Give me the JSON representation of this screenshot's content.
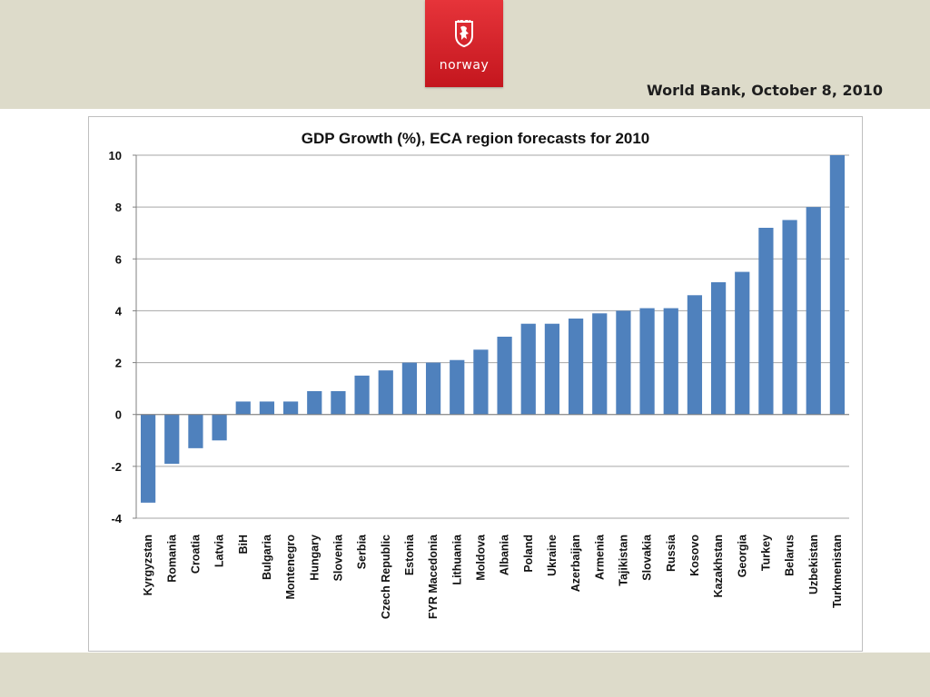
{
  "header": {
    "logo_text": "norway",
    "subtitle": "World Bank, October 8, 2010"
  },
  "colors": {
    "bar": "#4f81bd",
    "logo_red": "#d9252c",
    "band": "#dddbca"
  },
  "chart_data": {
    "type": "bar",
    "title": "GDP Growth (%), ECA region forecasts for 2010",
    "xlabel": "",
    "ylabel": "",
    "ylim": [
      -4,
      10
    ],
    "yticks": [
      -4,
      -2,
      0,
      2,
      4,
      6,
      8,
      10
    ],
    "grid": true,
    "legend": "none",
    "categories": [
      "Kyrgyzstan",
      "Romania",
      "Croatia",
      "Latvia",
      "BiH",
      "Bulgaria",
      "Montenegro",
      "Hungary",
      "Slovenia",
      "Serbia",
      "Czech Republic",
      "Estonia",
      "FYR Macedonia",
      "Lithuania",
      "Moldova",
      "Albania",
      "Poland",
      "Ukraine",
      "Azerbaijan",
      "Armenia",
      "Tajikistan",
      "Slovakia",
      "Russia",
      "Kosovo",
      "Kazakhstan",
      "Georgia",
      "Turkey",
      "Belarus",
      "Uzbekistan",
      "Turkmenistan"
    ],
    "values": [
      -3.4,
      -1.9,
      -1.3,
      -1.0,
      0.5,
      0.5,
      0.5,
      0.9,
      0.9,
      1.5,
      1.7,
      2.0,
      2.0,
      2.1,
      2.5,
      3.0,
      3.5,
      3.5,
      3.7,
      3.9,
      4.0,
      4.1,
      4.1,
      4.6,
      5.1,
      5.5,
      7.2,
      7.5,
      8.0,
      10.0
    ]
  }
}
